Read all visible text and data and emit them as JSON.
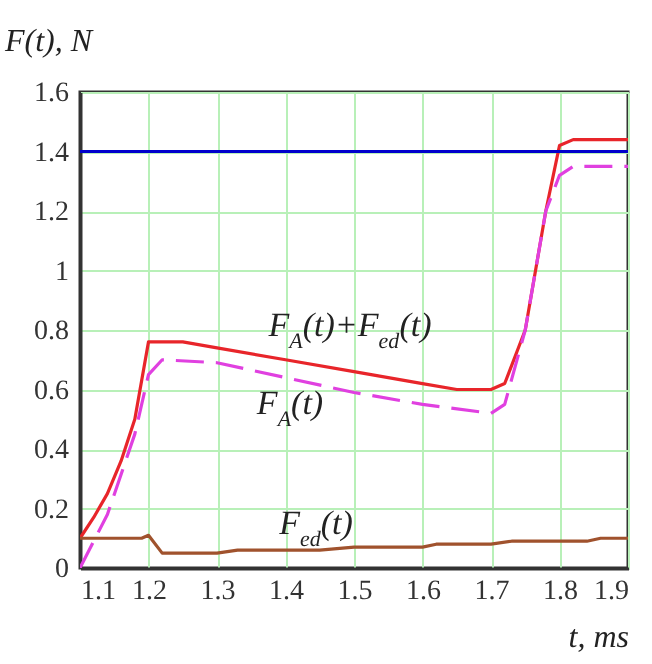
{
  "chart_data": {
    "type": "line",
    "xlabel": "t, ms",
    "ylabel": "F(t), N",
    "xlim": [
      1.1,
      1.9
    ],
    "xticks": [
      1.1,
      1.2,
      1.3,
      1.4,
      1.5,
      1.6,
      1.7,
      1.8,
      1.9
    ],
    "ylim": [
      0,
      1.6
    ],
    "yticks": [
      0,
      0.2,
      0.4,
      0.6,
      0.8,
      1,
      1.2,
      1.4,
      1.6
    ],
    "grid": true,
    "series": [
      {
        "color": "#e8252a",
        "line_style": "solid",
        "x": [
          1.1,
          1.12,
          1.14,
          1.16,
          1.18,
          1.2,
          1.25,
          1.3,
          1.4,
          1.5,
          1.6,
          1.65,
          1.7,
          1.72,
          1.75,
          1.78,
          1.8,
          1.82,
          1.9
        ],
        "values": [
          0.1,
          0.17,
          0.25,
          0.36,
          0.5,
          0.76,
          0.76,
          0.74,
          0.7,
          0.66,
          0.62,
          0.6,
          0.6,
          0.62,
          0.8,
          1.2,
          1.42,
          1.44,
          1.44
        ]
      },
      {
        "color": "#e040e0",
        "line_style": "dashed",
        "x": [
          1.1,
          1.14,
          1.18,
          1.2,
          1.22,
          1.3,
          1.4,
          1.5,
          1.6,
          1.7,
          1.72,
          1.75,
          1.78,
          1.8,
          1.82,
          1.9
        ],
        "values": [
          0,
          0.18,
          0.45,
          0.65,
          0.7,
          0.69,
          0.64,
          0.59,
          0.55,
          0.52,
          0.55,
          0.8,
          1.2,
          1.32,
          1.35,
          1.35
        ]
      },
      {
        "color": "#a0522d",
        "line_style": "solid",
        "x": [
          1.1,
          1.19,
          1.2,
          1.22,
          1.3,
          1.33,
          1.45,
          1.5,
          1.6,
          1.62,
          1.7,
          1.73,
          1.84,
          1.86,
          1.9
        ],
        "values": [
          0.1,
          0.1,
          0.11,
          0.05,
          0.05,
          0.06,
          0.06,
          0.07,
          0.07,
          0.08,
          0.08,
          0.09,
          0.09,
          0.1,
          0.1
        ]
      }
    ],
    "ref_lines": [
      {
        "axis": "y",
        "value": 1.4,
        "color": "#0000cc"
      }
    ],
    "annotations": [
      "F$_{A}$(t)+F$_{ed}$(t)",
      "F$_{A}$(t)",
      "F$_{ed}$(t)"
    ]
  }
}
